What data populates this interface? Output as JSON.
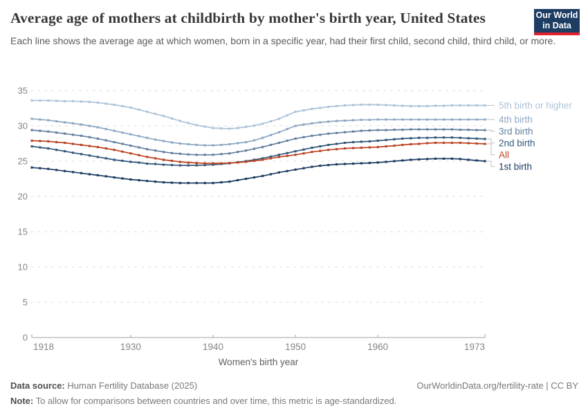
{
  "header": {
    "title": "Average age of mothers at childbirth by mother's birth year, United States",
    "subtitle": "Each line shows the average age at which women, born in a specific year, had their first child, second child, third child, or more.",
    "logo": {
      "line1": "Our World",
      "line2": "in Data",
      "bg_color": "#1d3d63",
      "accent_color": "#e0232e"
    }
  },
  "chart_data": {
    "type": "line",
    "title": "Average age of mothers at childbirth by mother's birth year, United States",
    "xlabel": "Women's birth year",
    "ylabel": "",
    "xlim": [
      1918,
      1973
    ],
    "ylim": [
      0,
      35
    ],
    "x_ticks": [
      1918,
      1930,
      1940,
      1950,
      1960,
      1973
    ],
    "y_ticks": [
      0,
      5,
      10,
      15,
      20,
      25,
      30,
      35
    ],
    "grid": "dashed-horizontal",
    "legend_position": "right",
    "axis_color": "#a3a3a3",
    "grid_color": "#dcdcdc",
    "tick_label_color": "#858585",
    "axis_title_color": "#5f5f5f",
    "connector_color": "#bdbdbd",
    "x": [
      1918,
      1919,
      1920,
      1921,
      1922,
      1923,
      1924,
      1925,
      1926,
      1927,
      1928,
      1929,
      1930,
      1931,
      1932,
      1933,
      1934,
      1935,
      1936,
      1937,
      1938,
      1939,
      1940,
      1941,
      1942,
      1943,
      1944,
      1945,
      1946,
      1947,
      1948,
      1949,
      1950,
      1951,
      1952,
      1953,
      1954,
      1955,
      1956,
      1957,
      1958,
      1959,
      1960,
      1961,
      1962,
      1963,
      1964,
      1965,
      1966,
      1967,
      1968,
      1969,
      1970,
      1971,
      1972,
      1973
    ],
    "series": [
      {
        "name": "5th birth or higher",
        "color": "#aec3d8",
        "values": [
          33.6,
          33.6,
          33.6,
          33.55,
          33.5,
          33.5,
          33.45,
          33.4,
          33.3,
          33.15,
          33.0,
          32.8,
          32.6,
          32.3,
          32.0,
          31.7,
          31.4,
          31.05,
          30.7,
          30.4,
          30.1,
          29.9,
          29.7,
          29.65,
          29.6,
          29.7,
          29.85,
          30.05,
          30.3,
          30.65,
          31.0,
          31.5,
          32.0,
          32.2,
          32.4,
          32.55,
          32.7,
          32.8,
          32.9,
          32.95,
          33.0,
          33.0,
          33.0,
          32.95,
          32.9,
          32.85,
          32.8,
          32.8,
          32.8,
          32.85,
          32.85,
          32.9,
          32.9,
          32.9,
          32.9,
          32.9
        ]
      },
      {
        "name": "4th birth",
        "color": "#8ea8c3",
        "values": [
          31.0,
          30.9,
          30.8,
          30.65,
          30.5,
          30.35,
          30.2,
          30.0,
          29.8,
          29.55,
          29.3,
          29.05,
          28.8,
          28.55,
          28.3,
          28.05,
          27.85,
          27.65,
          27.5,
          27.4,
          27.3,
          27.25,
          27.25,
          27.3,
          27.4,
          27.55,
          27.7,
          27.95,
          28.3,
          28.7,
          29.1,
          29.55,
          30.0,
          30.2,
          30.35,
          30.5,
          30.6,
          30.7,
          30.75,
          30.8,
          30.85,
          30.85,
          30.9,
          30.9,
          30.9,
          30.9,
          30.9,
          30.9,
          30.9,
          30.9,
          30.9,
          30.9,
          30.9,
          30.9,
          30.9,
          30.9
        ]
      },
      {
        "name": "3rd birth",
        "color": "#64819f",
        "values": [
          29.4,
          29.3,
          29.2,
          29.05,
          28.9,
          28.75,
          28.6,
          28.4,
          28.2,
          27.95,
          27.7,
          27.45,
          27.2,
          26.95,
          26.7,
          26.5,
          26.3,
          26.15,
          26.05,
          25.95,
          25.9,
          25.9,
          25.9,
          26.0,
          26.1,
          26.3,
          26.5,
          26.75,
          27.0,
          27.3,
          27.6,
          27.9,
          28.2,
          28.4,
          28.6,
          28.75,
          28.9,
          29.0,
          29.1,
          29.2,
          29.3,
          29.35,
          29.4,
          29.4,
          29.45,
          29.45,
          29.5,
          29.5,
          29.5,
          29.5,
          29.5,
          29.5,
          29.45,
          29.45,
          29.4,
          29.4
        ]
      },
      {
        "name": "2nd birth",
        "color": "#33577b",
        "values": [
          27.1,
          26.95,
          26.8,
          26.6,
          26.4,
          26.2,
          26.0,
          25.8,
          25.6,
          25.4,
          25.2,
          25.05,
          24.9,
          24.8,
          24.65,
          24.6,
          24.5,
          24.45,
          24.4,
          24.4,
          24.4,
          24.45,
          24.5,
          24.6,
          24.7,
          24.85,
          25.0,
          25.2,
          25.4,
          25.65,
          25.9,
          26.15,
          26.4,
          26.65,
          26.9,
          27.1,
          27.3,
          27.45,
          27.6,
          27.7,
          27.75,
          27.8,
          27.9,
          28.0,
          28.1,
          28.2,
          28.25,
          28.3,
          28.3,
          28.35,
          28.35,
          28.35,
          28.3,
          28.25,
          28.2,
          28.15
        ]
      },
      {
        "name": "All",
        "color": "#bc4425",
        "values": [
          27.9,
          27.85,
          27.8,
          27.7,
          27.6,
          27.45,
          27.3,
          27.15,
          27.0,
          26.8,
          26.6,
          26.35,
          26.1,
          25.85,
          25.6,
          25.4,
          25.2,
          25.05,
          24.9,
          24.8,
          24.75,
          24.7,
          24.7,
          24.7,
          24.75,
          24.8,
          24.9,
          25.05,
          25.2,
          25.4,
          25.6,
          25.75,
          25.9,
          26.1,
          26.3,
          26.45,
          26.6,
          26.7,
          26.8,
          26.85,
          26.9,
          26.95,
          27.0,
          27.1,
          27.2,
          27.3,
          27.4,
          27.45,
          27.55,
          27.6,
          27.6,
          27.6,
          27.6,
          27.55,
          27.5,
          27.45
        ]
      },
      {
        "name": "1st birth",
        "color": "#1d3d63",
        "values": [
          24.1,
          24.0,
          23.9,
          23.75,
          23.6,
          23.45,
          23.3,
          23.15,
          23.0,
          22.85,
          22.7,
          22.55,
          22.4,
          22.3,
          22.2,
          22.1,
          22.0,
          21.95,
          21.9,
          21.9,
          21.9,
          21.9,
          21.9,
          22.0,
          22.1,
          22.3,
          22.5,
          22.7,
          22.9,
          23.15,
          23.4,
          23.6,
          23.8,
          24.0,
          24.2,
          24.35,
          24.45,
          24.55,
          24.6,
          24.65,
          24.7,
          24.75,
          24.8,
          24.9,
          25.0,
          25.1,
          25.2,
          25.25,
          25.3,
          25.35,
          25.35,
          25.35,
          25.3,
          25.2,
          25.1,
          25.0
        ]
      }
    ]
  },
  "footer": {
    "data_source_label": "Data source:",
    "data_source_value": "Human Fertility Database (2025)",
    "link": "OurWorldinData.org/fertility-rate | CC BY",
    "note_label": "Note:",
    "note_value": "To allow for comparisons between countries and over time, this metric is age-standardized."
  }
}
